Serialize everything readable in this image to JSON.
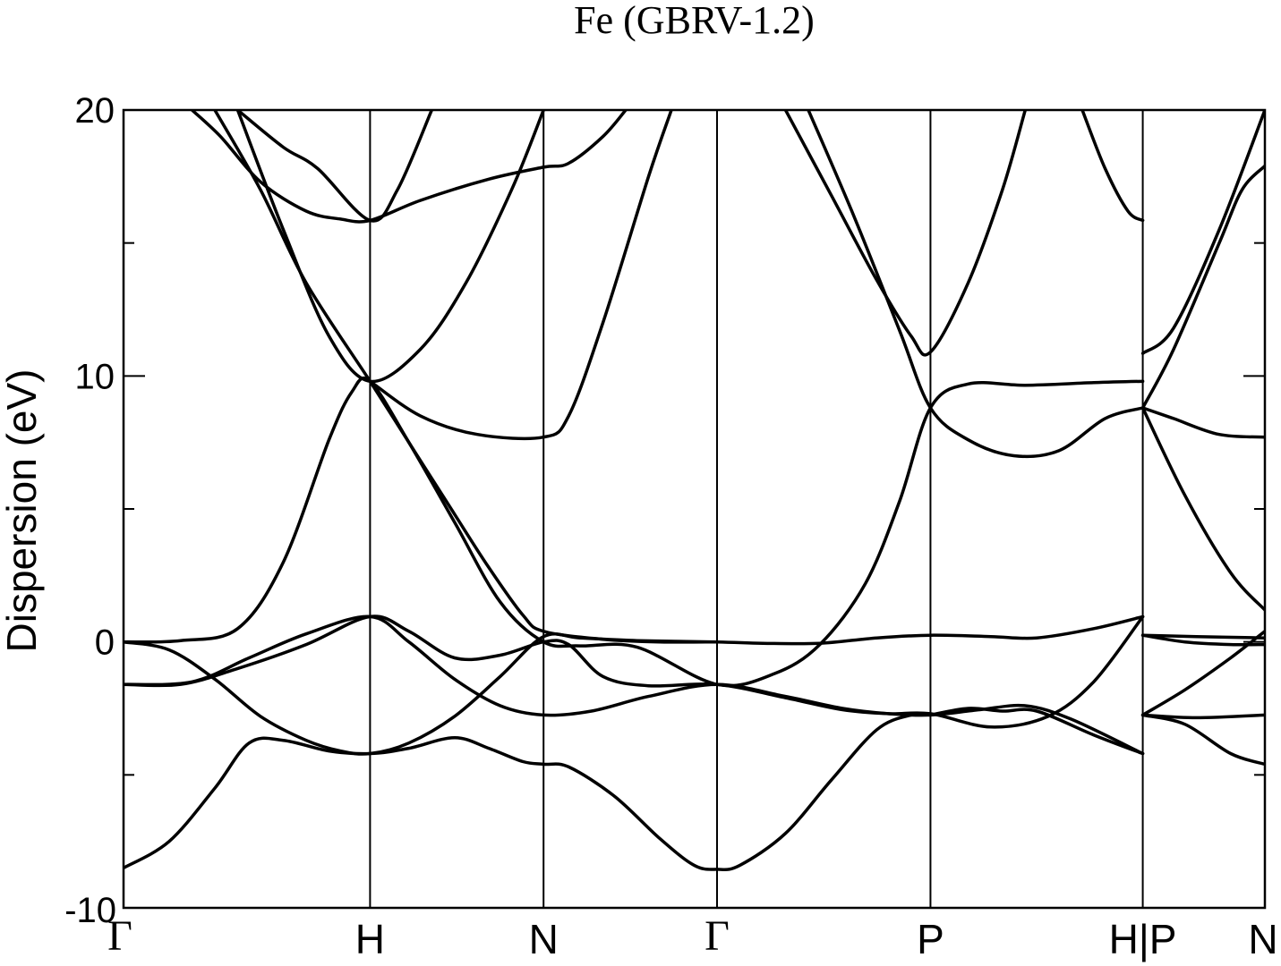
{
  "chart_data": {
    "type": "line",
    "title": "Fe (GBRV-1.2)",
    "ylabel": "Dispersion (eV)",
    "xlabel": "",
    "ylim": [
      -10,
      20
    ],
    "y_ticks": [
      {
        "value": 20,
        "label": "20"
      },
      {
        "value": 10,
        "label": "10"
      },
      {
        "value": 0,
        "label": "0"
      },
      {
        "value": -10,
        "label": "-10"
      }
    ],
    "y_minor_ticks": [
      15,
      5,
      -5
    ],
    "k_path": {
      "xlim": [
        0,
        10
      ],
      "points": [
        {
          "x": 0.0,
          "label": "Γ",
          "serif": true
        },
        {
          "x": 2.16,
          "label": "H",
          "serif": false
        },
        {
          "x": 3.68,
          "label": "N",
          "serif": false
        },
        {
          "x": 5.2,
          "label": "Γ",
          "serif": true
        },
        {
          "x": 7.07,
          "label": "P",
          "serif": false
        },
        {
          "x": 8.93,
          "label": "H|P",
          "serif": false
        },
        {
          "x": 10.0,
          "label": "N",
          "serif": false
        }
      ]
    },
    "grid": false,
    "legend": "none",
    "series": [
      {
        "values": [
          [
            0,
            -8.5
          ],
          [
            0.4,
            -7.5
          ],
          [
            0.8,
            -5.5
          ],
          [
            1.1,
            -3.8
          ],
          [
            1.4,
            -3.7
          ],
          [
            1.8,
            -4.1
          ],
          [
            2.16,
            -4.2
          ],
          [
            2.5,
            -4.0
          ],
          [
            2.9,
            -3.6
          ],
          [
            3.2,
            -4.0
          ],
          [
            3.5,
            -4.5
          ],
          [
            3.68,
            -4.6
          ],
          [
            3.9,
            -4.7
          ],
          [
            4.3,
            -5.8
          ],
          [
            4.7,
            -7.4
          ],
          [
            5.0,
            -8.4
          ],
          [
            5.2,
            -8.55
          ],
          [
            5.4,
            -8.4
          ],
          [
            5.8,
            -7.2
          ],
          [
            6.2,
            -5.2
          ],
          [
            6.6,
            -3.3
          ],
          [
            6.9,
            -2.75
          ],
          [
            7.07,
            -2.75
          ]
        ]
      },
      {
        "values": [
          [
            7.07,
            -2.75
          ],
          [
            7.4,
            -2.5
          ],
          [
            7.7,
            -2.6
          ],
          [
            8.0,
            -2.6
          ],
          [
            8.5,
            -3.5
          ],
          [
            8.93,
            -4.2
          ]
        ]
      },
      {
        "values": [
          [
            0,
            0.0
          ],
          [
            0.4,
            -0.3
          ],
          [
            0.8,
            -1.4
          ],
          [
            1.2,
            -2.8
          ],
          [
            1.6,
            -3.7
          ],
          [
            1.9,
            -4.1
          ],
          [
            2.16,
            -4.2
          ],
          [
            2.5,
            -3.8
          ],
          [
            2.9,
            -2.8
          ],
          [
            3.3,
            -1.3
          ],
          [
            3.68,
            0.2
          ],
          [
            4.0,
            0.15
          ],
          [
            4.5,
            0.05
          ],
          [
            5.2,
            0.0
          ],
          [
            5.6,
            -0.05
          ],
          [
            6.1,
            -0.05
          ],
          [
            6.6,
            0.15
          ],
          [
            7.07,
            0.25
          ],
          [
            7.6,
            0.2
          ],
          [
            8.0,
            0.15
          ],
          [
            8.5,
            0.5
          ],
          [
            8.93,
            0.95
          ]
        ]
      },
      {
        "values": [
          [
            0,
            -1.6
          ],
          [
            0.5,
            -1.6
          ],
          [
            1.0,
            -1.0
          ],
          [
            1.6,
            -0.1
          ],
          [
            2.16,
            0.95
          ],
          [
            2.5,
            0.4
          ],
          [
            2.9,
            -0.6
          ],
          [
            3.3,
            -0.5
          ],
          [
            3.68,
            0.0
          ],
          [
            3.9,
            -0.1
          ],
          [
            4.2,
            -1.3
          ],
          [
            4.6,
            -1.65
          ],
          [
            5.2,
            -1.6
          ],
          [
            5.8,
            -2.1
          ],
          [
            6.3,
            -2.55
          ],
          [
            6.7,
            -2.7
          ],
          [
            7.07,
            -2.7
          ],
          [
            7.6,
            -3.2
          ],
          [
            8.1,
            -2.8
          ],
          [
            8.5,
            -1.5
          ],
          [
            8.93,
            0.95
          ]
        ]
      },
      {
        "values": [
          [
            0,
            -1.6
          ],
          [
            0.6,
            -1.5
          ],
          [
            1.1,
            -0.6
          ],
          [
            1.6,
            0.3
          ],
          [
            2.16,
            0.95
          ],
          [
            2.5,
            0.0
          ],
          [
            2.9,
            -1.4
          ],
          [
            3.3,
            -2.4
          ],
          [
            3.68,
            -2.75
          ],
          [
            4.1,
            -2.6
          ],
          [
            4.6,
            -2.05
          ],
          [
            5.2,
            -1.6
          ],
          [
            5.8,
            -2.05
          ],
          [
            6.3,
            -2.5
          ],
          [
            6.7,
            -2.7
          ],
          [
            7.07,
            -2.75
          ],
          [
            7.5,
            -2.55
          ],
          [
            7.9,
            -2.4
          ],
          [
            8.3,
            -2.9
          ],
          [
            8.93,
            -4.2
          ]
        ]
      },
      {
        "values": [
          [
            0,
            0.0
          ],
          [
            0.5,
            0.05
          ],
          [
            1.0,
            0.5
          ],
          [
            1.4,
            3.0
          ],
          [
            1.8,
            7.6
          ],
          [
            2.0,
            9.4
          ],
          [
            2.16,
            9.8
          ],
          [
            2.5,
            7.5
          ],
          [
            2.9,
            4.5
          ],
          [
            3.3,
            1.5
          ],
          [
            3.68,
            0.0
          ],
          [
            4.0,
            -0.15
          ],
          [
            4.5,
            -0.2
          ],
          [
            5.2,
            -1.6
          ],
          [
            5.7,
            -1.2
          ],
          [
            6.1,
            -0.1
          ],
          [
            6.5,
            2.2
          ],
          [
            6.8,
            5.3
          ],
          [
            7.07,
            8.8
          ],
          [
            7.4,
            9.7
          ],
          [
            7.9,
            9.65
          ],
          [
            8.5,
            9.75
          ],
          [
            8.93,
            9.8
          ]
        ]
      },
      {
        "values": [
          [
            0.8,
            20.0
          ],
          [
            1.2,
            17.0
          ],
          [
            1.6,
            13.5
          ],
          [
            2.16,
            9.8
          ],
          [
            2.5,
            7.5
          ],
          [
            2.9,
            4.8
          ],
          [
            3.2,
            2.8
          ],
          [
            3.5,
            1.0
          ],
          [
            3.68,
            0.4
          ],
          [
            4.2,
            0.1
          ],
          [
            4.7,
            0.0
          ],
          [
            5.2,
            0.0
          ]
        ]
      },
      {
        "values": [
          [
            1.0,
            20.0
          ],
          [
            1.4,
            15.5
          ],
          [
            1.8,
            11.5
          ],
          [
            2.16,
            9.8
          ],
          [
            2.6,
            11.0
          ],
          [
            3.0,
            13.5
          ],
          [
            3.4,
            17.0
          ],
          [
            3.68,
            20.0
          ]
        ]
      },
      {
        "values": [
          [
            2.16,
            9.8
          ],
          [
            2.6,
            8.5
          ],
          [
            3.1,
            7.8
          ],
          [
            3.68,
            7.7
          ],
          [
            3.9,
            8.5
          ],
          [
            4.2,
            12.0
          ],
          [
            4.6,
            17.5
          ],
          [
            4.8,
            20.0
          ]
        ]
      },
      {
        "values": [
          [
            0.6,
            20.0
          ],
          [
            0.85,
            19.0
          ],
          [
            1.2,
            17.3
          ],
          [
            1.6,
            16.2
          ],
          [
            1.9,
            15.9
          ],
          [
            2.16,
            15.85
          ],
          [
            2.6,
            16.6
          ],
          [
            3.2,
            17.4
          ],
          [
            3.68,
            17.85
          ],
          [
            3.9,
            18.0
          ],
          [
            4.2,
            19.0
          ],
          [
            4.4,
            20.0
          ]
        ]
      },
      {
        "values": [
          [
            1.0,
            20.0
          ],
          [
            1.4,
            18.6
          ],
          [
            1.7,
            17.8
          ],
          [
            2.16,
            15.85
          ],
          [
            2.4,
            17.0
          ],
          [
            2.7,
            20.0
          ]
        ]
      },
      {
        "values": [
          [
            5.8,
            20.0
          ],
          [
            6.2,
            16.8
          ],
          [
            6.6,
            13.6
          ],
          [
            6.9,
            11.5
          ],
          [
            7.07,
            10.9
          ],
          [
            7.4,
            13.5
          ],
          [
            7.7,
            17.0
          ],
          [
            7.9,
            20.0
          ]
        ]
      },
      {
        "values": [
          [
            6.0,
            20.0
          ],
          [
            6.4,
            16.0
          ],
          [
            6.8,
            11.7
          ],
          [
            7.07,
            8.8
          ],
          [
            7.4,
            7.6
          ],
          [
            7.8,
            7.0
          ],
          [
            8.2,
            7.2
          ],
          [
            8.6,
            8.4
          ],
          [
            8.93,
            8.8
          ]
        ]
      },
      {
        "values": [
          [
            8.4,
            20.0
          ],
          [
            8.6,
            17.8
          ],
          [
            8.8,
            16.2
          ],
          [
            8.93,
            15.85
          ]
        ]
      },
      {
        "values": [
          [
            8.93,
            10.85
          ],
          [
            9.2,
            11.8
          ],
          [
            9.6,
            15.5
          ],
          [
            10.0,
            20.0
          ]
        ]
      },
      {
        "values": [
          [
            8.93,
            8.8
          ],
          [
            9.2,
            11.0
          ],
          [
            9.6,
            15.0
          ],
          [
            9.8,
            17.0
          ],
          [
            10.0,
            17.9
          ]
        ]
      },
      {
        "values": [
          [
            8.93,
            8.8
          ],
          [
            9.2,
            8.4
          ],
          [
            9.6,
            7.8
          ],
          [
            10.0,
            7.7
          ]
        ]
      },
      {
        "values": [
          [
            8.93,
            8.8
          ],
          [
            9.3,
            5.5
          ],
          [
            9.7,
            2.6
          ],
          [
            10.0,
            1.2
          ]
        ]
      },
      {
        "values": [
          [
            8.93,
            0.25
          ],
          [
            9.4,
            0.2
          ],
          [
            10.0,
            0.15
          ]
        ]
      },
      {
        "values": [
          [
            8.93,
            -2.75
          ],
          [
            9.3,
            -1.8
          ],
          [
            9.7,
            -0.6
          ],
          [
            10.0,
            0.4
          ]
        ]
      },
      {
        "values": [
          [
            8.93,
            0.25
          ],
          [
            9.3,
            0.0
          ],
          [
            9.7,
            -0.1
          ],
          [
            10.0,
            -0.1
          ]
        ]
      },
      {
        "values": [
          [
            8.93,
            -2.75
          ],
          [
            9.4,
            -2.85
          ],
          [
            10.0,
            -2.75
          ]
        ]
      },
      {
        "values": [
          [
            8.93,
            -2.75
          ],
          [
            9.3,
            -3.1
          ],
          [
            9.7,
            -4.2
          ],
          [
            10.0,
            -4.6
          ]
        ]
      }
    ]
  }
}
